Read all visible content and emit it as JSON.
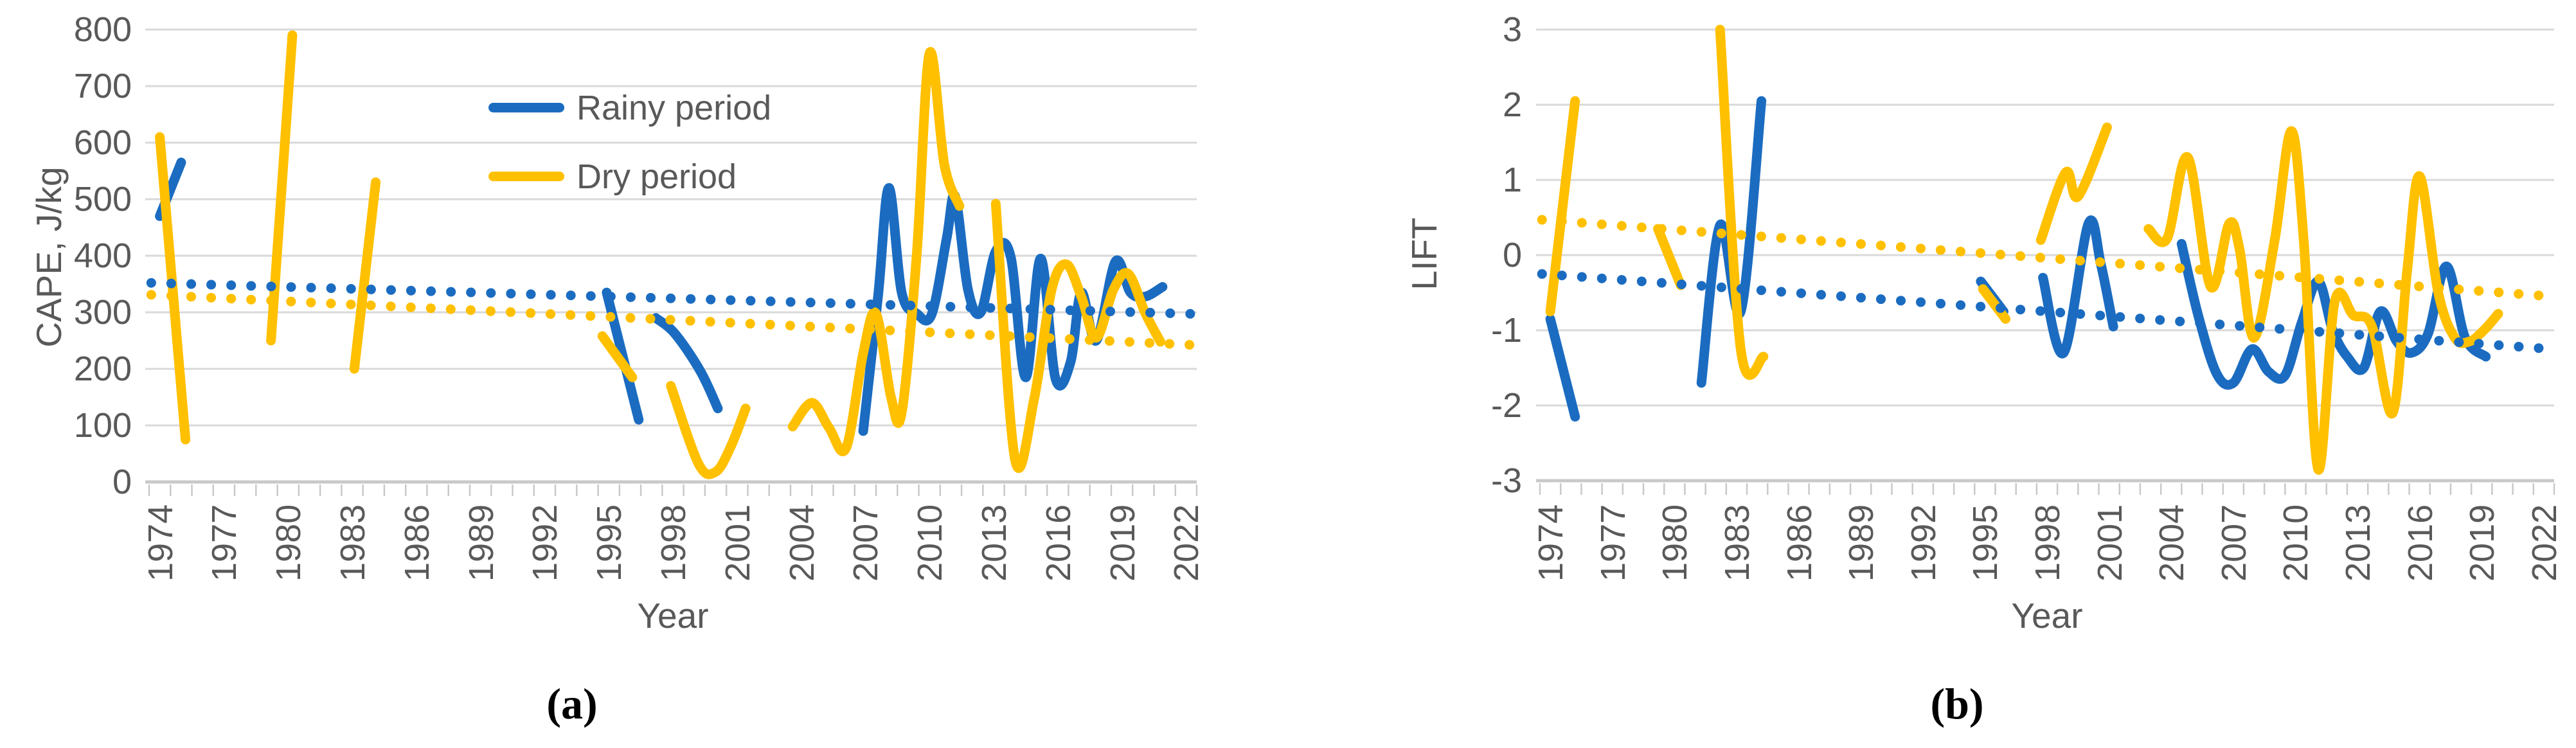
{
  "figure": {
    "description": "Two-panel line chart figure: interannual course of CAPE (a) and LIFT (b) for rainy and dry periods, 1974-2022, with dotted linear trend lines."
  },
  "colors": {
    "rainy": "#1B6CC1",
    "dry": "#FFC000",
    "gridline": "#D9D9D9",
    "axis_line": "#C9C9C9",
    "tick_mark": "#C9C9C9",
    "tick_text": "#595959",
    "caption_text": "#000000"
  },
  "legend": {
    "entries": [
      {
        "label": "Rainy period",
        "color_key": "rainy"
      },
      {
        "label": "Dry period",
        "color_key": "dry"
      }
    ]
  },
  "chart_data": [
    {
      "id": "a",
      "type": "line",
      "caption": "(a)",
      "xlabel": "Year",
      "ylabel": "CAPE, J/kg",
      "ylim": [
        0,
        800
      ],
      "yticks": [
        800,
        700,
        600,
        500,
        400,
        300,
        200,
        100,
        0
      ],
      "xrange": [
        1974,
        2022
      ],
      "xtick_labels": [
        "1974",
        "1977",
        "1980",
        "1983",
        "1986",
        "1989",
        "1992",
        "1995",
        "1998",
        "2001",
        "2004",
        "2007",
        "2010",
        "2013",
        "2016",
        "2019",
        "2022"
      ],
      "grid": true,
      "legend_position": "top-inside",
      "series": [
        {
          "name": "Rainy period",
          "color_key": "rainy",
          "style": "solid",
          "segments": [
            [
              [
                1974,
                470
              ],
              [
                1975,
                565
              ]
            ],
            [
              [
                1994.9,
                335
              ],
              [
                1996.4,
                110
              ]
            ],
            [
              [
                1997.2,
                290
              ],
              [
                1998.1,
                262
              ],
              [
                1999.3,
                195
              ],
              [
                2000.1,
                130
              ]
            ],
            [
              [
                2006.9,
                90
              ],
              [
                2007.6,
                330
              ],
              [
                2008.1,
                520
              ],
              [
                2008.7,
                335
              ],
              [
                2009.4,
                298
              ],
              [
                2010.1,
                296
              ],
              [
                2010.8,
                430
              ],
              [
                2011.2,
                505
              ],
              [
                2011.8,
                340
              ],
              [
                2012.4,
                300
              ],
              [
                2013.1,
                408
              ],
              [
                2013.8,
                398
              ],
              [
                2014.5,
                185
              ],
              [
                2015.2,
                395
              ],
              [
                2015.9,
                182
              ],
              [
                2016.6,
                212
              ],
              [
                2017.1,
                335
              ],
              [
                2017.8,
                250
              ],
              [
                2018.7,
                390
              ],
              [
                2019.4,
                335
              ],
              [
                2020.1,
                328
              ],
              [
                2020.9,
                345
              ]
            ]
          ]
        },
        {
          "name": "Dry period",
          "color_key": "dry",
          "style": "solid",
          "segments": [
            [
              [
                1974,
                610
              ],
              [
                1975.2,
                75
              ]
            ],
            [
              [
                1979.2,
                250
              ],
              [
                1980.2,
                790
              ]
            ],
            [
              [
                1983.1,
                200
              ],
              [
                1984.1,
                530
              ]
            ],
            [
              [
                1994.7,
                258
              ],
              [
                1996.1,
                185
              ]
            ],
            [
              [
                1997.9,
                170
              ],
              [
                1999.2,
                32
              ],
              [
                2000,
                18
              ],
              [
                2000.7,
                62
              ],
              [
                2001.4,
                130
              ]
            ],
            [
              [
                2003.6,
                98
              ],
              [
                2004.5,
                140
              ],
              [
                2005.3,
                96
              ],
              [
                2006.1,
                60
              ],
              [
                2006.9,
                228
              ],
              [
                2007.5,
                298
              ],
              [
                2008.2,
                150
              ],
              [
                2008.7,
                122
              ],
              [
                2009.4,
                400
              ],
              [
                2010,
                758
              ],
              [
                2010.7,
                560
              ],
              [
                2011.4,
                488
              ]
            ],
            [
              [
                2013.1,
                492
              ],
              [
                2014,
                40
              ],
              [
                2014.9,
                148
              ],
              [
                2015.7,
                338
              ],
              [
                2016.4,
                385
              ],
              [
                2017.1,
                328
              ],
              [
                2017.8,
                255
              ],
              [
                2018.6,
                340
              ],
              [
                2019.3,
                368
              ],
              [
                2020.1,
                298
              ],
              [
                2020.8,
                248
              ]
            ]
          ]
        },
        {
          "name": "Rainy period linear trend",
          "color_key": "rainy",
          "style": "dotted",
          "segments": [
            [
              [
                1973.6,
                352
              ],
              [
                2022.4,
                297
              ]
            ]
          ]
        },
        {
          "name": "Dry period linear trend",
          "color_key": "dry",
          "style": "dotted",
          "segments": [
            [
              [
                1973.6,
                331
              ],
              [
                2022.4,
                242
              ]
            ]
          ]
        }
      ]
    },
    {
      "id": "b",
      "type": "line",
      "caption": "(b)",
      "xlabel": "Year",
      "ylabel": "LIFT",
      "ylim": [
        -3,
        3
      ],
      "yticks": [
        3,
        2,
        1,
        0,
        -1,
        -2,
        -3
      ],
      "xrange": [
        1974,
        2022
      ],
      "xtick_labels": [
        "1974",
        "1977",
        "1980",
        "1983",
        "1986",
        "1989",
        "1992",
        "1995",
        "1998",
        "2001",
        "2004",
        "2007",
        "2010",
        "2013",
        "2016",
        "2019",
        "2022"
      ],
      "grid": true,
      "legend_position": "none",
      "series": [
        {
          "name": "Rainy period",
          "color_key": "rainy",
          "style": "solid",
          "segments": [
            [
              [
                1974,
                -0.85
              ],
              [
                1975.2,
                -2.15
              ]
            ],
            [
              [
                1981.3,
                -1.7
              ],
              [
                1982.2,
                0.4
              ],
              [
                1983.2,
                -0.75
              ],
              [
                1984.2,
                2.05
              ]
            ],
            [
              [
                1994.8,
                -0.35
              ],
              [
                1995.9,
                -0.75
              ]
            ],
            [
              [
                1997.8,
                -0.3
              ],
              [
                1998.8,
                -1.3
              ],
              [
                2000,
                0.42
              ],
              [
                2000.6,
                -0.12
              ],
              [
                2001.2,
                -0.95
              ]
            ],
            [
              [
                2004.5,
                0.15
              ],
              [
                2005.3,
                -0.8
              ],
              [
                2006.2,
                -1.58
              ],
              [
                2007,
                -1.7
              ],
              [
                2007.9,
                -1.25
              ],
              [
                2008.7,
                -1.55
              ],
              [
                2009.5,
                -1.6
              ],
              [
                2010.3,
                -0.9
              ],
              [
                2011.1,
                -0.35
              ],
              [
                2011.8,
                -1.0
              ],
              [
                2012.5,
                -1.35
              ],
              [
                2013.3,
                -1.5
              ],
              [
                2014.1,
                -0.75
              ],
              [
                2014.9,
                -1.15
              ],
              [
                2015.6,
                -1.3
              ],
              [
                2016.4,
                -1.05
              ],
              [
                2017.3,
                -0.15
              ],
              [
                2018.2,
                -1.1
              ],
              [
                2019.2,
                -1.35
              ]
            ]
          ]
        },
        {
          "name": "Dry period",
          "color_key": "dry",
          "style": "solid",
          "segments": [
            [
              [
                1974,
                -0.75
              ],
              [
                1975.2,
                2.05
              ]
            ],
            [
              [
                1979.2,
                0.35
              ],
              [
                1980.3,
                -0.4
              ]
            ],
            [
              [
                1982.2,
                3.0
              ],
              [
                1983.2,
                -1.25
              ],
              [
                1984.3,
                -1.35
              ]
            ],
            [
              [
                1994.9,
                -0.45
              ],
              [
                1996,
                -0.85
              ]
            ],
            [
              [
                1997.7,
                0.2
              ],
              [
                1998.9,
                1.1
              ],
              [
                1999.5,
                0.78
              ],
              [
                2000.9,
                1.7
              ]
            ],
            [
              [
                2002.9,
                0.35
              ],
              [
                2003.8,
                0.22
              ],
              [
                2004.8,
                1.3
              ],
              [
                2005.9,
                -0.42
              ],
              [
                2006.8,
                0.42
              ],
              [
                2007.3,
                0.08
              ],
              [
                2008,
                -1.1
              ],
              [
                2009,
                0.2
              ],
              [
                2009.8,
                1.65
              ],
              [
                2010.4,
                0.2
              ],
              [
                2011.1,
                -2.85
              ],
              [
                2011.9,
                -0.62
              ],
              [
                2012.8,
                -0.8
              ],
              [
                2013.7,
                -0.95
              ],
              [
                2014.7,
                -2.1
              ],
              [
                2015.4,
                -0.2
              ],
              [
                2016,
                1.05
              ],
              [
                2016.9,
                -0.5
              ],
              [
                2017.7,
                -1.1
              ],
              [
                2018.4,
                -1.15
              ],
              [
                2019.1,
                -1.0
              ],
              [
                2019.8,
                -0.78
              ]
            ]
          ]
        },
        {
          "name": "Rainy period linear trend",
          "color_key": "rainy",
          "style": "dotted",
          "segments": [
            [
              [
                1973.6,
                -0.25
              ],
              [
                2022.4,
                -1.25
              ]
            ]
          ]
        },
        {
          "name": "Dry period linear trend",
          "color_key": "dry",
          "style": "dotted",
          "segments": [
            [
              [
                1973.6,
                0.47
              ],
              [
                2022.4,
                -0.55
              ]
            ]
          ]
        }
      ]
    }
  ]
}
